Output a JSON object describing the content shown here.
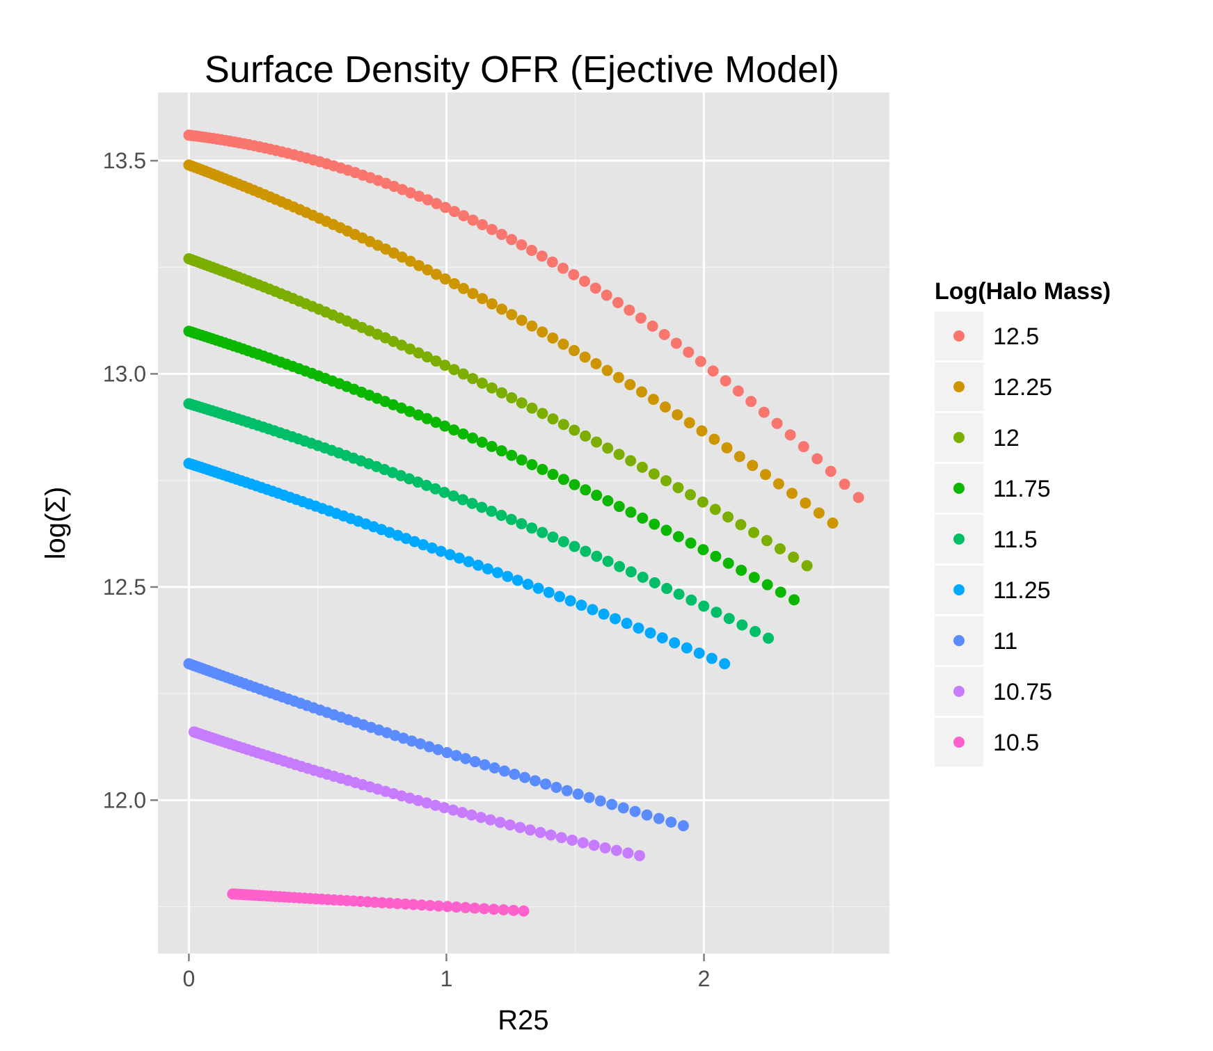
{
  "chart_data": {
    "type": "scatter",
    "title": "Surface Density OFR (Ejective Model)",
    "xlabel": "R25",
    "ylabel": "log(Σ)",
    "xlim": [
      -0.12,
      2.72
    ],
    "ylim": [
      11.64,
      13.66
    ],
    "x_ticks": [
      {
        "value": 0,
        "label": "0"
      },
      {
        "value": 1,
        "label": "1"
      },
      {
        "value": 2,
        "label": "2"
      }
    ],
    "y_ticks": [
      {
        "value": 12.0,
        "label": "12.0"
      },
      {
        "value": 12.5,
        "label": "12.5"
      },
      {
        "value": 13.0,
        "label": "13.0"
      },
      {
        "value": 13.5,
        "label": "13.5"
      }
    ],
    "x_minor_gridlines": [
      0.5,
      1.5,
      2.5
    ],
    "y_minor_gridlines": [
      11.75,
      12.25,
      12.75,
      13.25
    ],
    "grid": true,
    "background": "#e5e5e5",
    "legend": {
      "title": "Log(Halo Mass)",
      "placement": "right"
    },
    "series": [
      {
        "name": "12.5",
        "color": "#f8766d",
        "x_start": 0.0,
        "x_end": 2.6,
        "n": 80,
        "y_start": 13.56,
        "y_mid": 13.3,
        "y_end": 12.71
      },
      {
        "name": "12.25",
        "color": "#cd9600",
        "x_start": 0.0,
        "x_end": 2.5,
        "n": 78,
        "y_start": 13.49,
        "y_mid": 13.14,
        "y_end": 12.65
      },
      {
        "name": "12",
        "color": "#7cae00",
        "x_start": 0.0,
        "x_end": 2.4,
        "n": 76,
        "y_start": 13.27,
        "y_mid": 12.96,
        "y_end": 12.55
      },
      {
        "name": "11.75",
        "color": "#0cb702",
        "x_start": 0.0,
        "x_end": 2.35,
        "n": 75,
        "y_start": 13.1,
        "y_mid": 12.83,
        "y_end": 12.47
      },
      {
        "name": "11.5",
        "color": "#00be67",
        "x_start": 0.0,
        "x_end": 2.25,
        "n": 73,
        "y_start": 12.93,
        "y_mid": 12.69,
        "y_end": 12.38
      },
      {
        "name": "11.25",
        "color": "#00a9ff",
        "x_start": 0.0,
        "x_end": 2.08,
        "n": 70,
        "y_start": 12.79,
        "y_mid": 12.57,
        "y_end": 12.32
      },
      {
        "name": "11",
        "color": "#5b8cff",
        "x_start": 0.0,
        "x_end": 1.92,
        "n": 67,
        "y_start": 12.32,
        "y_mid": 12.12,
        "y_end": 11.94
      },
      {
        "name": "10.75",
        "color": "#c77cff",
        "x_start": 0.02,
        "x_end": 1.75,
        "n": 64,
        "y_start": 12.16,
        "y_mid": 12.0,
        "y_end": 11.87
      },
      {
        "name": "10.5",
        "color": "#ff61cc",
        "x_start": 0.17,
        "x_end": 1.3,
        "n": 48,
        "y_start": 11.78,
        "y_mid": 11.76,
        "y_end": 11.74
      }
    ]
  }
}
